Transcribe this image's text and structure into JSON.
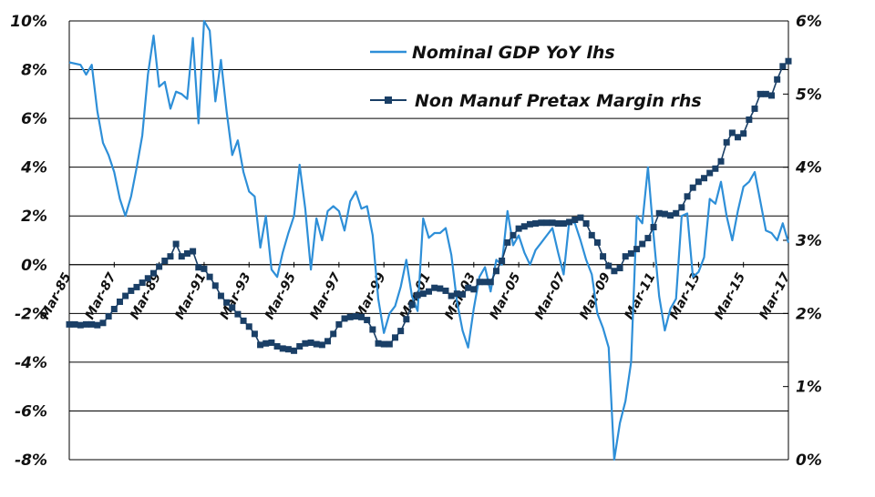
{
  "chart_data": {
    "type": "line",
    "x": {
      "start_year": 1985,
      "end_year": 2017,
      "tick_labels": [
        "Mar-85",
        "Mar-87",
        "Mar-89",
        "Mar-91",
        "Mar-93",
        "Mar-95",
        "Mar-97",
        "Mar-99",
        "Mar-01",
        "Mar-03",
        "Mar-05",
        "Mar-07",
        "Mar-09",
        "Mar-11",
        "Mar-13",
        "Mar-15",
        "Mar-17"
      ]
    },
    "y_left": {
      "ylim": [
        -8,
        10
      ],
      "tick_labels": [
        "10%",
        "8%",
        "6%",
        "4%",
        "2%",
        "0%",
        "-2%",
        "-4%",
        "-6%",
        "-8%"
      ],
      "tick_values": [
        10,
        8,
        6,
        4,
        2,
        0,
        -2,
        -4,
        -6,
        -8
      ]
    },
    "y_right": {
      "ylim": [
        0,
        6
      ],
      "tick_labels": [
        "6%",
        "5%",
        "4%",
        "3%",
        "2%",
        "1%",
        "0%"
      ],
      "tick_values": [
        6,
        5,
        4,
        3,
        2,
        1,
        0
      ]
    },
    "grid": "horizontal",
    "legend_position": "top-center",
    "series": [
      {
        "name": "Nominal GDP YoY lhs",
        "axis": "left",
        "color": "#2e8fd8",
        "marker": "none",
        "points": [
          [
            1985.0,
            8.3
          ],
          [
            1985.5,
            8.2
          ],
          [
            1985.75,
            7.8
          ],
          [
            1986.0,
            8.2
          ],
          [
            1986.25,
            6.3
          ],
          [
            1986.5,
            5.0
          ],
          [
            1986.75,
            4.5
          ],
          [
            1987.0,
            3.8
          ],
          [
            1987.25,
            2.7
          ],
          [
            1987.5,
            2.0
          ],
          [
            1987.75,
            2.8
          ],
          [
            1988.0,
            4.0
          ],
          [
            1988.25,
            5.3
          ],
          [
            1988.5,
            7.8
          ],
          [
            1988.75,
            9.4
          ],
          [
            1989.0,
            7.3
          ],
          [
            1989.25,
            7.5
          ],
          [
            1989.5,
            6.4
          ],
          [
            1989.75,
            7.1
          ],
          [
            1990.0,
            7.0
          ],
          [
            1990.25,
            6.8
          ],
          [
            1990.5,
            9.3
          ],
          [
            1990.75,
            5.8
          ],
          [
            1991.0,
            10.0
          ],
          [
            1991.25,
            9.6
          ],
          [
            1991.5,
            6.7
          ],
          [
            1991.75,
            8.4
          ],
          [
            1992.0,
            6.3
          ],
          [
            1992.25,
            4.5
          ],
          [
            1992.5,
            5.1
          ],
          [
            1992.75,
            3.8
          ],
          [
            1993.0,
            3.0
          ],
          [
            1993.25,
            2.8
          ],
          [
            1993.5,
            0.7
          ],
          [
            1993.75,
            2.0
          ],
          [
            1994.0,
            -0.2
          ],
          [
            1994.25,
            -0.5
          ],
          [
            1994.5,
            0.5
          ],
          [
            1994.75,
            1.3
          ],
          [
            1995.0,
            2.0
          ],
          [
            1995.25,
            4.1
          ],
          [
            1995.5,
            2.3
          ],
          [
            1995.75,
            -0.2
          ],
          [
            1996.0,
            1.9
          ],
          [
            1996.25,
            1.0
          ],
          [
            1996.5,
            2.2
          ],
          [
            1996.75,
            2.4
          ],
          [
            1997.0,
            2.2
          ],
          [
            1997.25,
            1.4
          ],
          [
            1997.5,
            2.6
          ],
          [
            1997.75,
            3.0
          ],
          [
            1998.0,
            2.3
          ],
          [
            1998.25,
            2.4
          ],
          [
            1998.5,
            1.2
          ],
          [
            1998.75,
            -1.4
          ],
          [
            1999.0,
            -2.8
          ],
          [
            1999.25,
            -2.0
          ],
          [
            1999.5,
            -1.7
          ],
          [
            1999.75,
            -0.9
          ],
          [
            2000.0,
            0.2
          ],
          [
            2000.25,
            -1.3
          ],
          [
            2000.5,
            -1.9
          ],
          [
            2000.75,
            1.9
          ],
          [
            2001.0,
            1.1
          ],
          [
            2001.25,
            1.3
          ],
          [
            2001.5,
            1.3
          ],
          [
            2001.75,
            1.5
          ],
          [
            2002.0,
            0.4
          ],
          [
            2002.25,
            -1.5
          ],
          [
            2002.5,
            -2.7
          ],
          [
            2002.75,
            -3.4
          ],
          [
            2003.0,
            -1.8
          ],
          [
            2003.25,
            -0.5
          ],
          [
            2003.5,
            -0.1
          ],
          [
            2003.75,
            -1.1
          ],
          [
            2004.0,
            0.2
          ],
          [
            2004.25,
            0.0
          ],
          [
            2004.5,
            2.2
          ],
          [
            2004.75,
            0.8
          ],
          [
            2005.0,
            1.2
          ],
          [
            2005.25,
            0.5
          ],
          [
            2005.5,
            0.0
          ],
          [
            2005.75,
            0.6
          ],
          [
            2006.0,
            0.9
          ],
          [
            2006.25,
            1.2
          ],
          [
            2006.5,
            1.5
          ],
          [
            2006.75,
            0.5
          ],
          [
            2007.0,
            -0.4
          ],
          [
            2007.25,
            1.8
          ],
          [
            2007.5,
            1.7
          ],
          [
            2007.75,
            1.0
          ],
          [
            2008.0,
            0.2
          ],
          [
            2008.25,
            -0.4
          ],
          [
            2008.5,
            -2.0
          ],
          [
            2008.75,
            -2.6
          ],
          [
            2009.0,
            -3.4
          ],
          [
            2009.25,
            -8.0
          ],
          [
            2009.5,
            -6.5
          ],
          [
            2009.75,
            -5.6
          ],
          [
            2010.0,
            -4.0
          ],
          [
            2010.25,
            2.0
          ],
          [
            2010.5,
            1.7
          ],
          [
            2010.75,
            4.0
          ],
          [
            2011.0,
            1.2
          ],
          [
            2011.25,
            -1.3
          ],
          [
            2011.5,
            -2.7
          ],
          [
            2011.75,
            -1.8
          ],
          [
            2012.0,
            -1.4
          ],
          [
            2012.25,
            2.0
          ],
          [
            2012.5,
            2.1
          ],
          [
            2012.75,
            -0.5
          ],
          [
            2013.0,
            -0.3
          ],
          [
            2013.25,
            0.3
          ],
          [
            2013.5,
            2.7
          ],
          [
            2013.75,
            2.5
          ],
          [
            2014.0,
            3.4
          ],
          [
            2014.25,
            2.0
          ],
          [
            2014.5,
            1.0
          ],
          [
            2014.75,
            2.2
          ],
          [
            2015.0,
            3.2
          ],
          [
            2015.25,
            3.4
          ],
          [
            2015.5,
            3.8
          ],
          [
            2015.75,
            2.6
          ],
          [
            2016.0,
            1.4
          ],
          [
            2016.25,
            1.3
          ],
          [
            2016.5,
            1.0
          ],
          [
            2016.75,
            1.7
          ],
          [
            2017.0,
            0.9
          ]
        ]
      },
      {
        "name": "Non Manuf Pretax Margin rhs",
        "axis": "right",
        "color": "#1a3f66",
        "marker": "square",
        "points": [
          [
            1985.0,
            1.85
          ],
          [
            1985.25,
            1.85
          ],
          [
            1985.5,
            1.84
          ],
          [
            1985.75,
            1.85
          ],
          [
            1986.0,
            1.85
          ],
          [
            1986.25,
            1.84
          ],
          [
            1986.5,
            1.87
          ],
          [
            1986.75,
            1.96
          ],
          [
            1987.0,
            2.06
          ],
          [
            1987.25,
            2.16
          ],
          [
            1987.5,
            2.24
          ],
          [
            1987.75,
            2.31
          ],
          [
            1988.0,
            2.36
          ],
          [
            1988.25,
            2.42
          ],
          [
            1988.5,
            2.48
          ],
          [
            1988.75,
            2.55
          ],
          [
            1989.0,
            2.64
          ],
          [
            1989.25,
            2.72
          ],
          [
            1989.5,
            2.78
          ],
          [
            1989.75,
            2.95
          ],
          [
            1990.0,
            2.78
          ],
          [
            1990.25,
            2.82
          ],
          [
            1990.5,
            2.85
          ],
          [
            1990.75,
            2.63
          ],
          [
            1991.0,
            2.61
          ],
          [
            1991.25,
            2.5
          ],
          [
            1991.5,
            2.38
          ],
          [
            1991.75,
            2.24
          ],
          [
            1992.0,
            2.15
          ],
          [
            1992.25,
            2.08
          ],
          [
            1992.5,
            1.99
          ],
          [
            1992.75,
            1.9
          ],
          [
            1993.0,
            1.82
          ],
          [
            1993.25,
            1.72
          ],
          [
            1993.5,
            1.57
          ],
          [
            1993.75,
            1.59
          ],
          [
            1994.0,
            1.6
          ],
          [
            1994.25,
            1.55
          ],
          [
            1994.5,
            1.52
          ],
          [
            1994.75,
            1.51
          ],
          [
            1995.0,
            1.49
          ],
          [
            1995.25,
            1.55
          ],
          [
            1995.5,
            1.59
          ],
          [
            1995.75,
            1.6
          ],
          [
            1996.0,
            1.58
          ],
          [
            1996.25,
            1.57
          ],
          [
            1996.5,
            1.62
          ],
          [
            1996.75,
            1.72
          ],
          [
            1997.0,
            1.85
          ],
          [
            1997.25,
            1.93
          ],
          [
            1997.5,
            1.95
          ],
          [
            1997.75,
            1.96
          ],
          [
            1998.0,
            1.95
          ],
          [
            1998.25,
            1.91
          ],
          [
            1998.5,
            1.78
          ],
          [
            1998.75,
            1.59
          ],
          [
            1999.0,
            1.58
          ],
          [
            1999.25,
            1.58
          ],
          [
            1999.5,
            1.67
          ],
          [
            1999.75,
            1.76
          ],
          [
            2000.0,
            1.92
          ],
          [
            2000.25,
            2.12
          ],
          [
            2000.5,
            2.25
          ],
          [
            2000.75,
            2.27
          ],
          [
            2001.0,
            2.3
          ],
          [
            2001.25,
            2.35
          ],
          [
            2001.5,
            2.34
          ],
          [
            2001.75,
            2.31
          ],
          [
            2002.0,
            2.24
          ],
          [
            2002.25,
            2.27
          ],
          [
            2002.5,
            2.26
          ],
          [
            2002.75,
            2.35
          ],
          [
            2003.0,
            2.33
          ],
          [
            2003.25,
            2.43
          ],
          [
            2003.5,
            2.43
          ],
          [
            2003.75,
            2.43
          ],
          [
            2004.0,
            2.58
          ],
          [
            2004.25,
            2.72
          ],
          [
            2004.5,
            2.97
          ],
          [
            2004.75,
            3.07
          ],
          [
            2005.0,
            3.16
          ],
          [
            2005.25,
            3.19
          ],
          [
            2005.5,
            3.22
          ],
          [
            2005.75,
            3.23
          ],
          [
            2006.0,
            3.24
          ],
          [
            2006.25,
            3.24
          ],
          [
            2006.5,
            3.24
          ],
          [
            2006.75,
            3.23
          ],
          [
            2007.0,
            3.23
          ],
          [
            2007.25,
            3.25
          ],
          [
            2007.5,
            3.28
          ],
          [
            2007.75,
            3.31
          ],
          [
            2008.0,
            3.23
          ],
          [
            2008.25,
            3.07
          ],
          [
            2008.5,
            2.97
          ],
          [
            2008.75,
            2.78
          ],
          [
            2009.0,
            2.65
          ],
          [
            2009.25,
            2.58
          ],
          [
            2009.5,
            2.62
          ],
          [
            2009.75,
            2.78
          ],
          [
            2010.0,
            2.82
          ],
          [
            2010.25,
            2.88
          ],
          [
            2010.5,
            2.95
          ],
          [
            2010.75,
            3.03
          ],
          [
            2011.0,
            3.18
          ],
          [
            2011.25,
            3.37
          ],
          [
            2011.5,
            3.36
          ],
          [
            2011.75,
            3.34
          ],
          [
            2012.0,
            3.37
          ],
          [
            2012.25,
            3.45
          ],
          [
            2012.5,
            3.6
          ],
          [
            2012.75,
            3.72
          ],
          [
            2013.0,
            3.8
          ],
          [
            2013.25,
            3.85
          ],
          [
            2013.5,
            3.92
          ],
          [
            2013.75,
            3.98
          ],
          [
            2014.0,
            4.08
          ],
          [
            2014.25,
            4.34
          ],
          [
            2014.5,
            4.47
          ],
          [
            2014.75,
            4.41
          ],
          [
            2015.0,
            4.46
          ],
          [
            2015.25,
            4.65
          ],
          [
            2015.5,
            4.8
          ],
          [
            2015.75,
            5.0
          ],
          [
            2016.0,
            5.0
          ],
          [
            2016.25,
            4.98
          ],
          [
            2016.5,
            5.2
          ],
          [
            2016.75,
            5.38
          ],
          [
            2017.0,
            5.45
          ]
        ]
      }
    ]
  }
}
